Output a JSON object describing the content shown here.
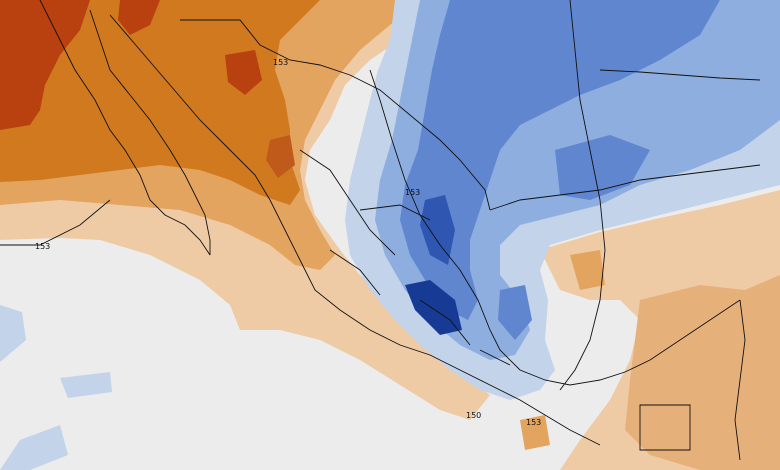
{
  "map": {
    "contour_labels": [
      {
        "id": "label-153-north",
        "text": "153"
      },
      {
        "id": "label-153-central",
        "text": "153"
      },
      {
        "id": "label-153-west",
        "text": "153"
      },
      {
        "id": "label-150-south",
        "text": "150"
      },
      {
        "id": "label-153-south",
        "text": "153"
      }
    ],
    "colors": {
      "warm_strong": "#b8410f",
      "warm_mid": "#d0791f",
      "warm_light": "#e2a45e",
      "warm_pale": "#efcba5",
      "neutral": "#ececec",
      "cold_pale": "#c2d3ea",
      "cold_light": "#8eaee0",
      "cold_mid": "#5f86cf",
      "cold_strong": "#2f56b0",
      "cold_deep": "#173b95",
      "boundary": "#111111"
    }
  }
}
